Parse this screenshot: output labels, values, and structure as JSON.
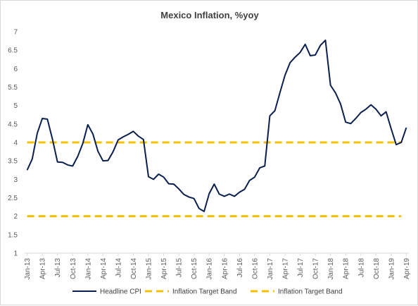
{
  "chart_data": {
    "type": "line",
    "title": "Mexico Inflation, %yoy",
    "xlabel": "",
    "ylabel": "",
    "ylim": [
      1,
      7
    ],
    "yticks": [
      "1",
      "1.5",
      "2",
      "2.5",
      "3",
      "3.5",
      "4",
      "4.5",
      "5",
      "5.5",
      "6",
      "6.5",
      "7"
    ],
    "xtick_labels": [
      "Jan-13",
      "Apr-13",
      "Jul-13",
      "Oct-13",
      "Jan-14",
      "Apr-14",
      "Jul-14",
      "Oct-14",
      "Jan-15",
      "Apr-15",
      "Jul-15",
      "Oct-15",
      "Jan-16",
      "Apr-16",
      "Jul-16",
      "Oct-16",
      "Jan-17",
      "Apr-17",
      "Jul-17",
      "Oct-17",
      "Jan-18",
      "Apr-18",
      "Jul-18",
      "Oct-18",
      "Jan-19",
      "Apr-19"
    ],
    "grid": false,
    "legend_position": "bottom",
    "series": [
      {
        "name": "Headline CPI",
        "color": "#0b1f4d",
        "style": "solid",
        "values": [
          3.25,
          3.55,
          4.25,
          4.65,
          4.63,
          4.09,
          3.47,
          3.46,
          3.39,
          3.36,
          3.62,
          3.97,
          4.48,
          4.23,
          3.76,
          3.5,
          3.51,
          3.75,
          4.07,
          4.15,
          4.22,
          4.3,
          4.17,
          4.08,
          3.07,
          3.0,
          3.14,
          3.06,
          2.88,
          2.87,
          2.74,
          2.59,
          2.52,
          2.48,
          2.21,
          2.13,
          2.61,
          2.87,
          2.6,
          2.54,
          2.6,
          2.54,
          2.65,
          2.73,
          2.97,
          3.06,
          3.31,
          3.36,
          4.72,
          4.86,
          5.35,
          5.82,
          6.16,
          6.31,
          6.44,
          6.66,
          6.35,
          6.37,
          6.63,
          6.77,
          5.55,
          5.34,
          5.04,
          4.55,
          4.51,
          4.65,
          4.81,
          4.9,
          5.02,
          4.9,
          4.72,
          4.83,
          4.37,
          3.94,
          4.0,
          4.4
        ]
      },
      {
        "name": "Inflation Target Band",
        "color": "#f5c000",
        "style": "dashed",
        "constant": 4
      },
      {
        "name": "Inflation Target Band",
        "color": "#f5c000",
        "style": "dashed",
        "constant": 2
      }
    ]
  }
}
